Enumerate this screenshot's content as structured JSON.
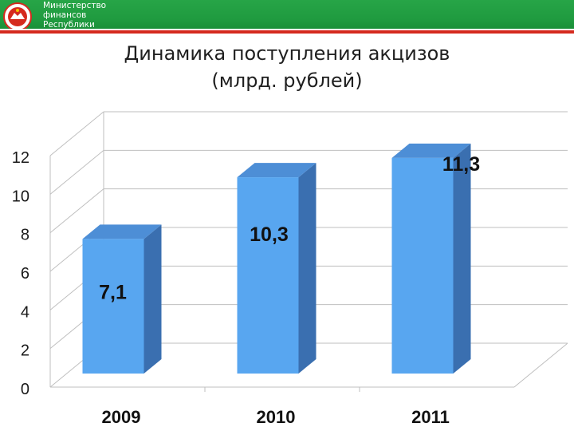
{
  "header": {
    "ministry_lines": [
      "Министерство",
      "финансов",
      "Республики"
    ],
    "colors": {
      "green": "#1f9a3f",
      "white": "#ffffff",
      "red": "#d52a1e"
    },
    "logo_icon": "tatarstan-emblem-icon"
  },
  "title_lines": [
    "Динамика поступления акцизов",
    "(млрд. рублей)"
  ],
  "chart_data": {
    "type": "bar",
    "style": "3d-column",
    "categories": [
      "2009",
      "2010",
      "2011"
    ],
    "values": [
      7.1,
      10.3,
      11.3
    ],
    "value_labels": [
      "7,1",
      "10,3",
      "11,3"
    ],
    "yticks": [
      "0",
      "2",
      "4",
      "6",
      "8",
      "10",
      "12"
    ],
    "ylim": [
      0,
      12
    ],
    "xlabel": "",
    "ylabel": "",
    "grid": true,
    "legend": "none",
    "colors": {
      "bar_front": "#58a6f0",
      "bar_side": "#3a6fb0",
      "bar_top": "#4d8ed6",
      "grid": "#bfbfbf"
    }
  }
}
